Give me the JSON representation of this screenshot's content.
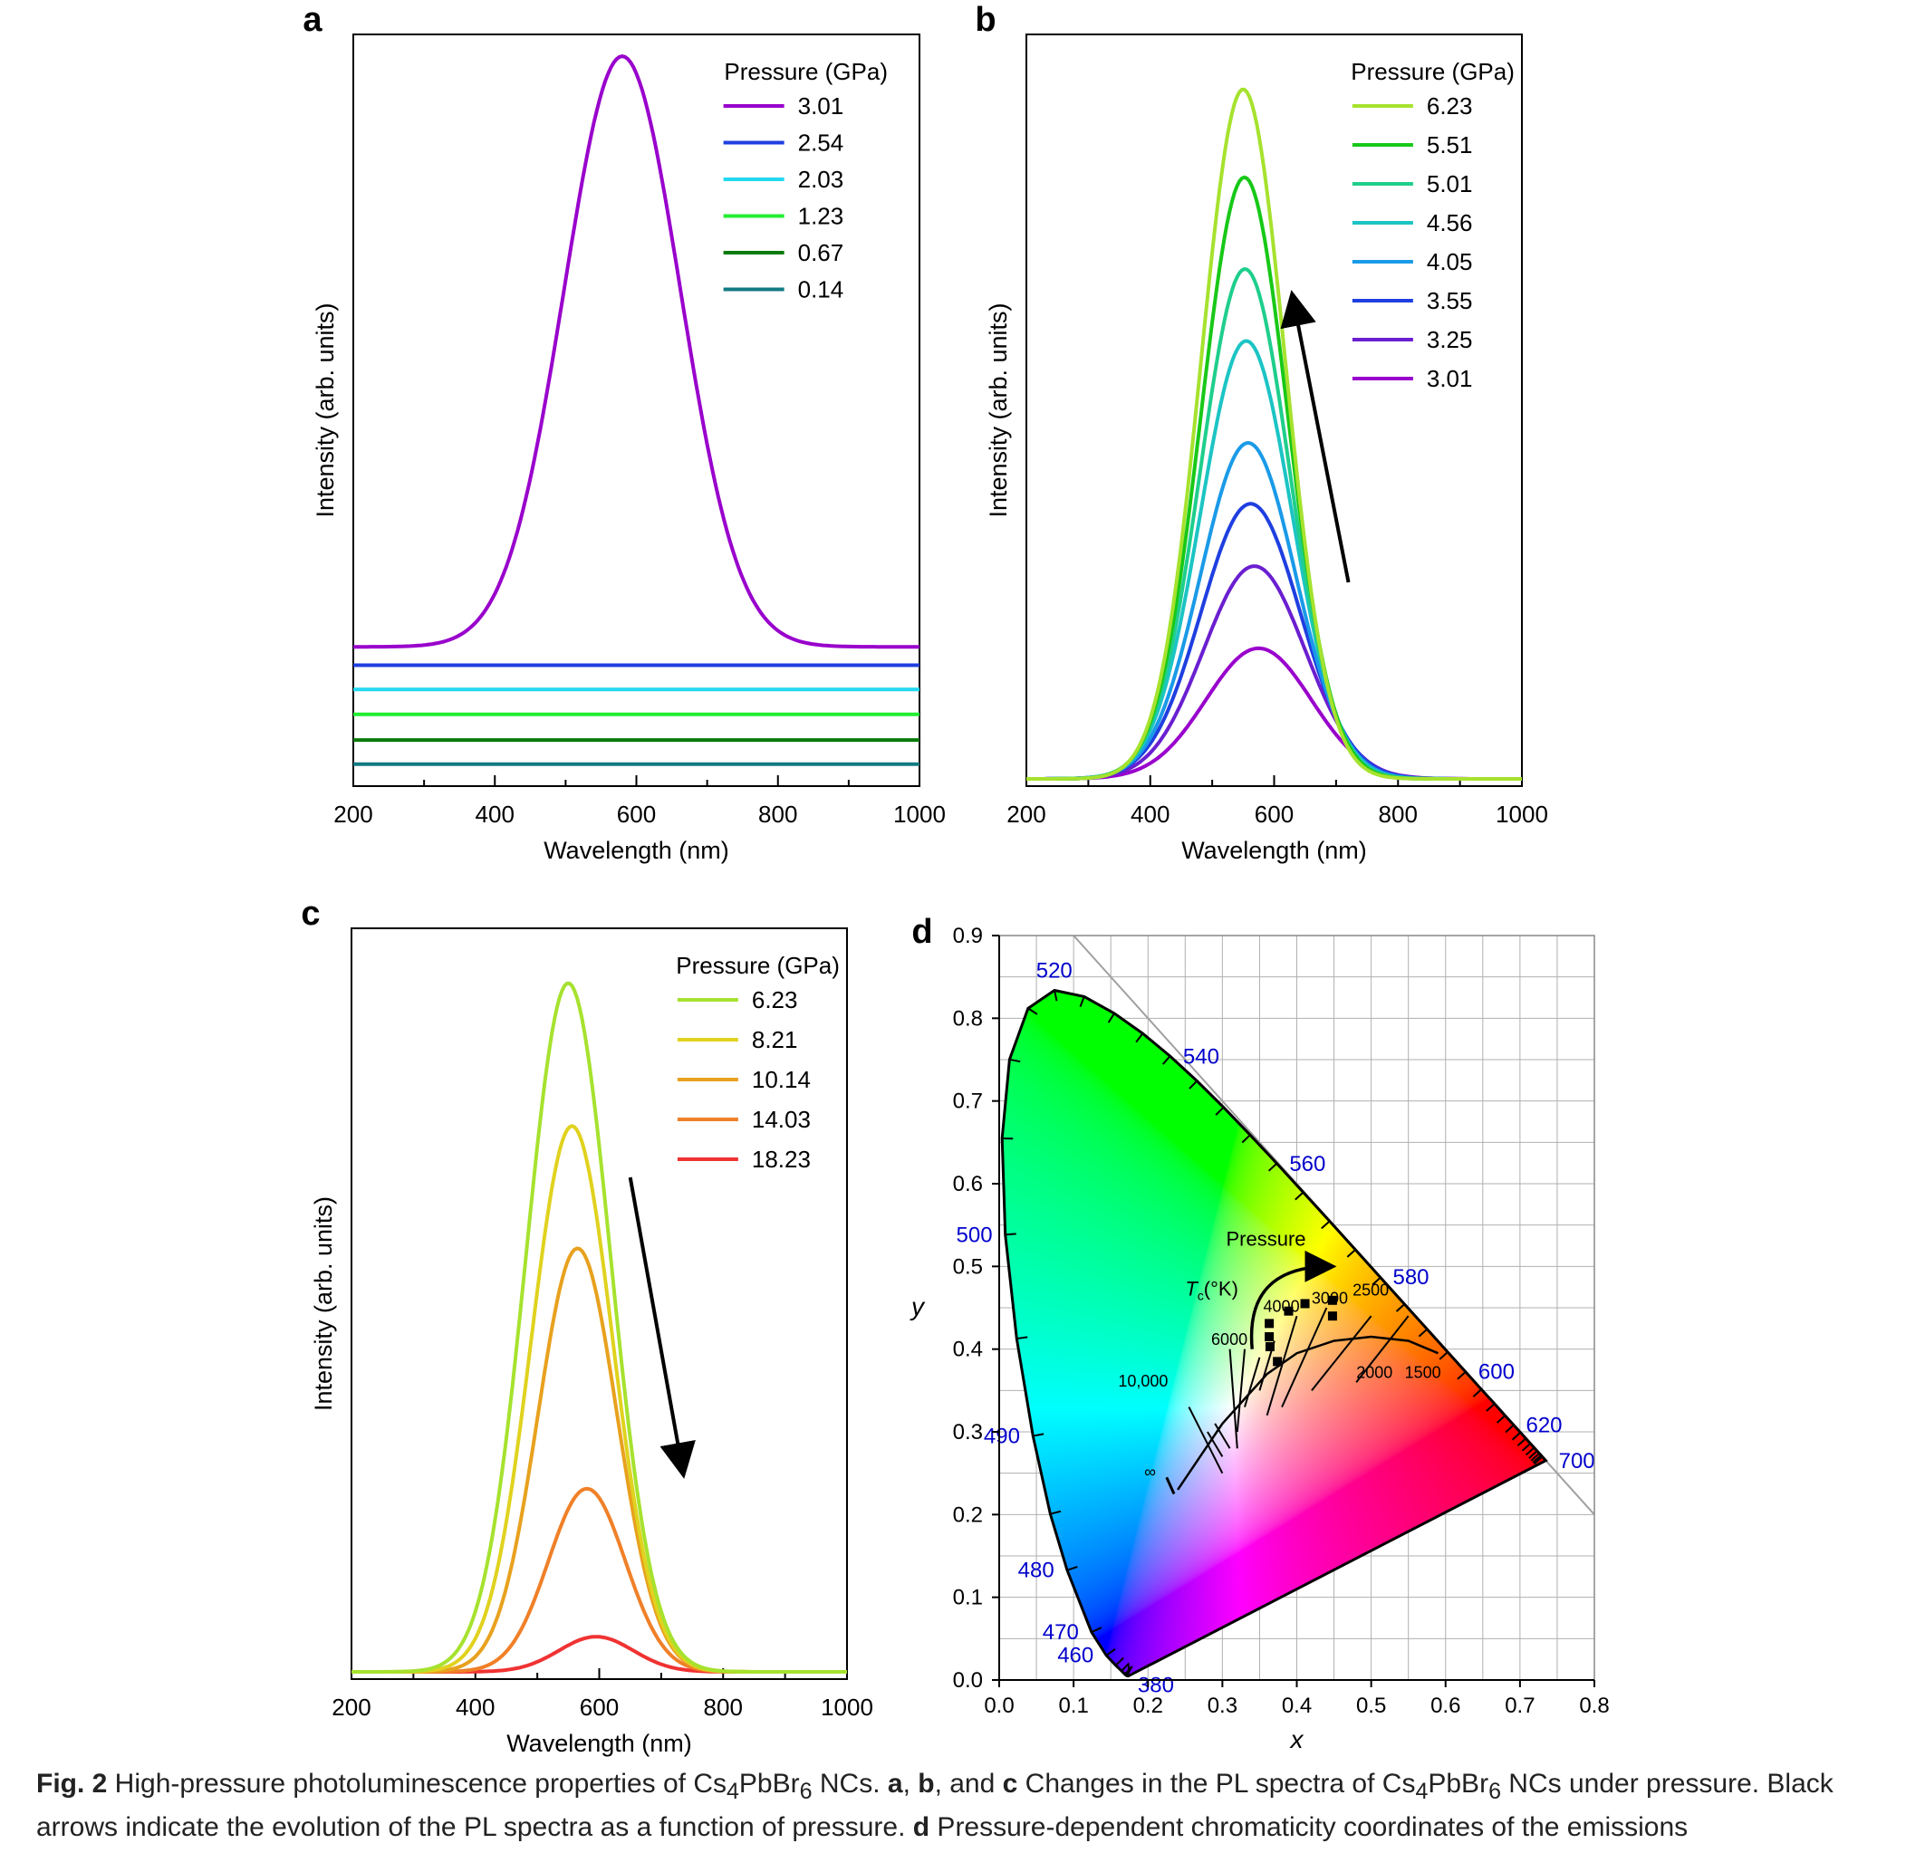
{
  "figure": {
    "panels": [
      {
        "letter": "a",
        "type": "line",
        "xlabel": "Wavelength (nm)",
        "ylabel": "Intensity (arb. units)",
        "xlim": [
          200,
          1000
        ],
        "x_ticks": [
          "200",
          "400",
          "600",
          "800",
          "1000"
        ],
        "legend_title": "Pressure (GPa)",
        "legend_position": "top-right",
        "series": [
          {
            "name": "3.01",
            "color": "#9900cc",
            "baseline": 0.18,
            "peak_center": 580,
            "peak_height": 0.805,
            "peak_width": 82
          },
          {
            "name": "2.54",
            "color": "#1f3fe0",
            "baseline": 0.155,
            "peak_center": 580,
            "peak_height": 0,
            "peak_width": 80
          },
          {
            "name": "2.03",
            "color": "#22d8f0",
            "baseline": 0.122,
            "peak_center": 580,
            "peak_height": 0,
            "peak_width": 80
          },
          {
            "name": "1.23",
            "color": "#22ee33",
            "baseline": 0.088,
            "peak_center": 580,
            "peak_height": 0,
            "peak_width": 80
          },
          {
            "name": "0.67",
            "color": "#0a7a0a",
            "baseline": 0.053,
            "peak_center": 580,
            "peak_height": 0,
            "peak_width": 80
          },
          {
            "name": "0.14",
            "color": "#127a82",
            "baseline": 0.02,
            "peak_center": 580,
            "peak_height": 0,
            "peak_width": 80
          }
        ],
        "annotations": []
      },
      {
        "letter": "b",
        "type": "line",
        "xlabel": "Wavelength (nm)",
        "ylabel": "Intensity (arb. units)",
        "xlim": [
          200,
          1000
        ],
        "x_ticks": [
          "200",
          "400",
          "600",
          "800",
          "1000"
        ],
        "legend_title": "Pressure (GPa)",
        "legend_position": "top-right",
        "series": [
          {
            "name": "6.23",
            "color": "#a6e22e",
            "baseline": 0.0,
            "peak_center": 550,
            "peak_height": 0.94,
            "peak_width": 68
          },
          {
            "name": "5.51",
            "color": "#18c818",
            "baseline": 0.0,
            "peak_center": 552,
            "peak_height": 0.82,
            "peak_width": 70
          },
          {
            "name": "5.01",
            "color": "#1fce8c",
            "baseline": 0.0,
            "peak_center": 553,
            "peak_height": 0.695,
            "peak_width": 72
          },
          {
            "name": "4.56",
            "color": "#1cc4c4",
            "baseline": 0.0,
            "peak_center": 555,
            "peak_height": 0.597,
            "peak_width": 74
          },
          {
            "name": "4.05",
            "color": "#1a9ae8",
            "baseline": 0.0,
            "peak_center": 558,
            "peak_height": 0.458,
            "peak_width": 77
          },
          {
            "name": "3.55",
            "color": "#1f3fe0",
            "baseline": 0.0,
            "peak_center": 562,
            "peak_height": 0.375,
            "peak_width": 80
          },
          {
            "name": "3.25",
            "color": "#6a1fd0",
            "baseline": 0.0,
            "peak_center": 568,
            "peak_height": 0.29,
            "peak_width": 82
          },
          {
            "name": "3.01",
            "color": "#9900cc",
            "baseline": 0.0,
            "peak_center": 575,
            "peak_height": 0.178,
            "peak_width": 85
          }
        ],
        "annotations": [
          "arrow-up"
        ]
      },
      {
        "letter": "c",
        "type": "line",
        "xlabel": "Wavelength (nm)",
        "ylabel": "Intensity (arb. units)",
        "xlim": [
          200,
          1000
        ],
        "x_ticks": [
          "200",
          "400",
          "600",
          "800",
          "1000"
        ],
        "legend_title": "Pressure (GPa)",
        "legend_position": "top-right",
        "series": [
          {
            "name": "6.23",
            "color": "#a6e22e",
            "baseline": 0.0,
            "peak_center": 550,
            "peak_height": 0.94,
            "peak_width": 68
          },
          {
            "name": "8.21",
            "color": "#e0d21e",
            "baseline": 0.0,
            "peak_center": 556,
            "peak_height": 0.745,
            "peak_width": 66
          },
          {
            "name": "10.14",
            "color": "#e8a11e",
            "baseline": 0.0,
            "peak_center": 565,
            "peak_height": 0.578,
            "peak_width": 64
          },
          {
            "name": "14.03",
            "color": "#f08028",
            "baseline": 0.0,
            "peak_center": 580,
            "peak_height": 0.25,
            "peak_width": 62
          },
          {
            "name": "18.23",
            "color": "#f03232",
            "baseline": 0.0,
            "peak_center": 595,
            "peak_height": 0.048,
            "peak_width": 60
          }
        ],
        "annotations": [
          "arrow-down"
        ]
      }
    ],
    "chromaticity": {
      "letter": "d",
      "type": "scatter",
      "xlabel": "x",
      "ylabel": "y",
      "xlim": [
        0.0,
        0.8
      ],
      "ylim": [
        0.0,
        0.9
      ],
      "x_ticks": [
        "0.0",
        "0.1",
        "0.2",
        "0.3",
        "0.4",
        "0.5",
        "0.6",
        "0.7",
        "0.8"
      ],
      "y_ticks": [
        "0.0",
        "0.1",
        "0.2",
        "0.3",
        "0.4",
        "0.5",
        "0.6",
        "0.7",
        "0.8",
        "0.9"
      ],
      "wavelength_labels": [
        {
          "text": "520",
          "x": 0.074,
          "y": 0.834
        },
        {
          "text": "540",
          "x": 0.23,
          "y": 0.754
        },
        {
          "text": "560",
          "x": 0.373,
          "y": 0.624
        },
        {
          "text": "580",
          "x": 0.512,
          "y": 0.487
        },
        {
          "text": "600",
          "x": 0.627,
          "y": 0.373
        },
        {
          "text": "620",
          "x": 0.691,
          "y": 0.308
        },
        {
          "text": "700",
          "x": 0.735,
          "y": 0.265
        },
        {
          "text": "500",
          "x": 0.008,
          "y": 0.538
        },
        {
          "text": "490",
          "x": 0.045,
          "y": 0.295
        },
        {
          "text": "480",
          "x": 0.091,
          "y": 0.133
        },
        {
          "text": "470",
          "x": 0.124,
          "y": 0.058
        },
        {
          "text": "460",
          "x": 0.144,
          "y": 0.03
        },
        {
          "text": "380",
          "x": 0.174,
          "y": 0.005
        }
      ],
      "cct_labels": [
        "10,000",
        "6000",
        "4000",
        "3000",
        "2500",
        "2000",
        "1500",
        "∞"
      ],
      "tc_label": "T",
      "tc_sub": "c",
      "tc_unit": "(°K)",
      "pressure_label": "Pressure",
      "points": [
        {
          "x": 0.363,
          "y": 0.431
        },
        {
          "x": 0.363,
          "y": 0.415
        },
        {
          "x": 0.364,
          "y": 0.403
        },
        {
          "x": 0.374,
          "y": 0.385
        },
        {
          "x": 0.389,
          "y": 0.446
        },
        {
          "x": 0.411,
          "y": 0.455
        },
        {
          "x": 0.448,
          "y": 0.459
        },
        {
          "x": 0.448,
          "y": 0.44
        }
      ]
    }
  },
  "caption": {
    "fig_label": "Fig. 2",
    "part1": " High-pressure photoluminescence properties of Cs",
    "sub1": "4",
    "part2": "PbBr",
    "sub2": "6",
    "part3": " NCs. ",
    "a": "a",
    "comma1": ", ",
    "b": "b",
    "comma2": ", and ",
    "c": "c",
    "part4": " Changes in the PL spectra of Cs",
    "sub3": "4",
    "part5": "PbBr",
    "sub4": "6",
    "part6": " NCs under pressure. Black arrows indicate the evolution of the PL spectra as a function of pressure. ",
    "d": "d",
    "part7": " Pressure-dependent chromaticity coordinates of the emissions"
  },
  "colors": {
    "axis": "#000000",
    "grid": "#b0b0b0",
    "wavelength_label": "#0000cc",
    "locus_line": "#a0a0a0"
  }
}
